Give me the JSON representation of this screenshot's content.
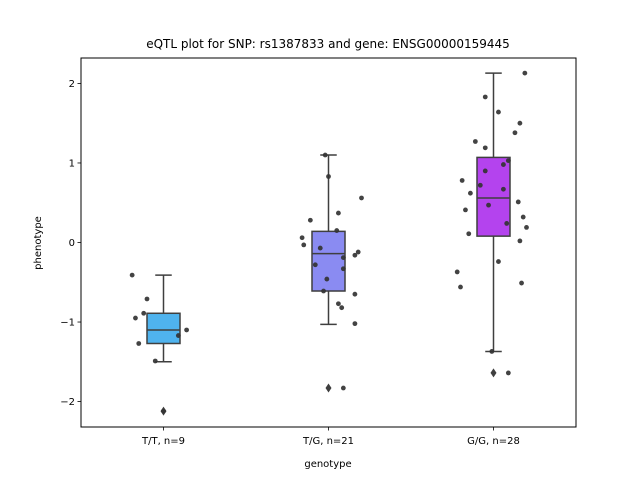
{
  "chart_data": {
    "type": "box",
    "title": "eQTL plot for SNP: rs1387833 and gene: ENSG00000159445",
    "xlabel": "genotype",
    "ylabel": "phenotype",
    "ylim": [
      -2.32,
      2.32
    ],
    "yticks": [
      -2,
      -1,
      0,
      1,
      2
    ],
    "ytick_labels": [
      "−2",
      "−1",
      "0",
      "1",
      "2"
    ],
    "grid": false,
    "legend": "none",
    "groups": [
      {
        "label": "T/T, n=9",
        "color": "#4fb3ee",
        "box": {
          "q1": -1.27,
          "median": -1.1,
          "q3": -0.89,
          "whisker_low": -1.5,
          "whisker_high": -0.41
        },
        "outliers": [
          -2.12
        ],
        "points": [
          {
            "x": -0.19,
            "y": -0.41
          },
          {
            "x": -0.1,
            "y": -0.71
          },
          {
            "x": -0.12,
            "y": -0.89
          },
          {
            "x": -0.17,
            "y": -0.95
          },
          {
            "x": 0.14,
            "y": -1.1
          },
          {
            "x": 0.09,
            "y": -1.17
          },
          {
            "x": -0.15,
            "y": -1.27
          },
          {
            "x": -0.05,
            "y": -1.49
          },
          {
            "x": 0.0,
            "y": -2.12
          }
        ]
      },
      {
        "label": "T/G, n=21",
        "color": "#8a8bf2",
        "box": {
          "q1": -0.61,
          "median": -0.14,
          "q3": 0.14,
          "whisker_low": -1.03,
          "whisker_high": 1.1
        },
        "outliers": [
          -1.83
        ],
        "points": [
          {
            "x": -0.02,
            "y": 1.1
          },
          {
            "x": 0.0,
            "y": 0.83
          },
          {
            "x": 0.2,
            "y": 0.56
          },
          {
            "x": 0.06,
            "y": 0.37
          },
          {
            "x": -0.11,
            "y": 0.28
          },
          {
            "x": 0.05,
            "y": 0.15
          },
          {
            "x": -0.16,
            "y": 0.06
          },
          {
            "x": -0.15,
            "y": -0.03
          },
          {
            "x": -0.05,
            "y": -0.07
          },
          {
            "x": 0.18,
            "y": -0.12
          },
          {
            "x": 0.16,
            "y": -0.16
          },
          {
            "x": 0.09,
            "y": -0.19
          },
          {
            "x": -0.08,
            "y": -0.28
          },
          {
            "x": 0.09,
            "y": -0.33
          },
          {
            "x": -0.01,
            "y": -0.46
          },
          {
            "x": -0.03,
            "y": -0.61
          },
          {
            "x": 0.16,
            "y": -0.65
          },
          {
            "x": 0.06,
            "y": -0.77
          },
          {
            "x": 0.08,
            "y": -0.82
          },
          {
            "x": 0.16,
            "y": -1.02
          },
          {
            "x": 0.09,
            "y": -1.83
          }
        ]
      },
      {
        "label": "G/G, n=28",
        "color": "#b443ee",
        "box": {
          "q1": 0.08,
          "median": 0.56,
          "q3": 1.07,
          "whisker_low": -1.37,
          "whisker_high": 2.13
        },
        "outliers": [
          -1.64
        ],
        "points": [
          {
            "x": 0.19,
            "y": 2.13
          },
          {
            "x": -0.05,
            "y": 1.83
          },
          {
            "x": 0.03,
            "y": 1.64
          },
          {
            "x": 0.16,
            "y": 1.5
          },
          {
            "x": 0.13,
            "y": 1.38
          },
          {
            "x": -0.11,
            "y": 1.27
          },
          {
            "x": -0.05,
            "y": 1.19
          },
          {
            "x": 0.09,
            "y": 1.03
          },
          {
            "x": 0.06,
            "y": 0.98
          },
          {
            "x": -0.05,
            "y": 0.9
          },
          {
            "x": -0.19,
            "y": 0.78
          },
          {
            "x": -0.08,
            "y": 0.72
          },
          {
            "x": 0.06,
            "y": 0.67
          },
          {
            "x": -0.14,
            "y": 0.62
          },
          {
            "x": 0.15,
            "y": 0.51
          },
          {
            "x": -0.03,
            "y": 0.47
          },
          {
            "x": -0.17,
            "y": 0.41
          },
          {
            "x": 0.18,
            "y": 0.32
          },
          {
            "x": 0.08,
            "y": 0.24
          },
          {
            "x": 0.2,
            "y": 0.19
          },
          {
            "x": -0.15,
            "y": 0.11
          },
          {
            "x": 0.16,
            "y": 0.02
          },
          {
            "x": 0.03,
            "y": -0.24
          },
          {
            "x": -0.22,
            "y": -0.37
          },
          {
            "x": 0.17,
            "y": -0.51
          },
          {
            "x": -0.2,
            "y": -0.56
          },
          {
            "x": -0.01,
            "y": -1.37
          },
          {
            "x": 0.09,
            "y": -1.64
          }
        ]
      }
    ]
  }
}
